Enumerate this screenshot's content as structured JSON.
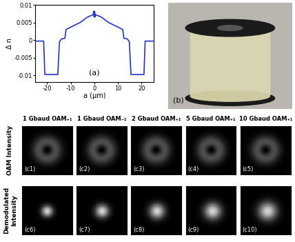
{
  "chart_data": {
    "type": "line",
    "x_label": "a (μm)",
    "y_label": "Δ n",
    "annotations": [
      "(a)"
    ],
    "x": [
      -25,
      -21.5,
      -21,
      -15.5,
      -14.8,
      -14,
      -12.5,
      -12,
      -6,
      -3,
      -0.5,
      -0.3,
      -0.1,
      0.1,
      0.3,
      0.5,
      3,
      6,
      12,
      12.5,
      14,
      14.8,
      15.5,
      21,
      21.5,
      25
    ],
    "values": [
      -0.0003,
      -0.0003,
      -0.0098,
      -0.0098,
      -0.0005,
      0.0003,
      0.0005,
      0.003,
      0.005,
      0.0065,
      0.0072,
      0.0082,
      0.0065,
      0.0082,
      0.0066,
      0.0072,
      0.0065,
      0.005,
      0.003,
      0.0005,
      0.0003,
      -0.0005,
      -0.0098,
      -0.0098,
      -0.0003,
      -0.0003
    ],
    "color": "#2233cc",
    "xlim": [
      -25,
      25
    ],
    "xticks": [
      -20,
      -10,
      0,
      10,
      20
    ],
    "ylim": [
      -0.012,
      0.01
    ],
    "yticks": [
      -0.01,
      -0.005,
      0,
      0.005,
      0.01
    ]
  },
  "photo": {
    "label": "(b)"
  },
  "images": {
    "column_headers": [
      "1 Gbaud OAM₊₁",
      "1 Gbaud OAM₋₁",
      "2 Gbaud OAM₊₁",
      "5 Gbaud OAM₊₁",
      "10 Gbaud OAM₊₁"
    ],
    "row_labels": [
      "OAM Intensity",
      "Demodulated\nIntensity"
    ],
    "panel_labels": [
      [
        "(c1)",
        "(c2)",
        "(c3)",
        "(c4)",
        "(c5)"
      ],
      [
        "(c6)",
        "(c7)",
        "(c8)",
        "(c9)",
        "(c10)"
      ]
    ]
  }
}
